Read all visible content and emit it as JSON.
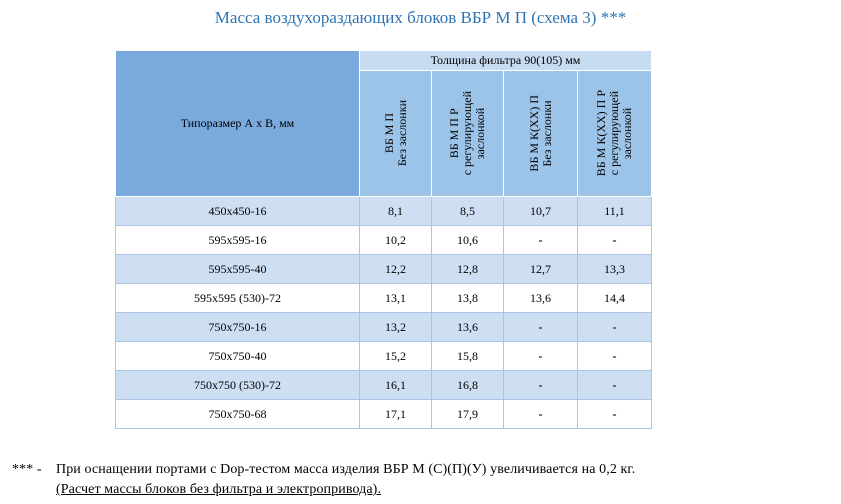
{
  "title": "Масса воздухораздающих  блоков ВБР М П (схема 3) ***",
  "table": {
    "size_header": "Типоразмер А х В, мм",
    "thickness_header": "Толщина фильтра  90(105) мм",
    "columns": [
      "ВБ М П\nБез заслонки",
      "ВБ М П Р\nс регулирующей\nзаслонкой",
      "ВБ М К(ХХ) П\nБез заслонки",
      "ВБ М К(ХХ) П Р\nс регулирующей\nзаслонкой"
    ],
    "rows": [
      {
        "size": "450х450-16",
        "v1": "8,1",
        "v2": "8,5",
        "v3": "10,7",
        "v4": "11,1"
      },
      {
        "size": "595х595-16",
        "v1": "10,2",
        "v2": "10,6",
        "v3": "-",
        "v4": "-"
      },
      {
        "size": "595х595-40",
        "v1": "12,2",
        "v2": "12,8",
        "v3": "12,7",
        "v4": "13,3"
      },
      {
        "size": "595х595 (530)-72",
        "v1": "13,1",
        "v2": "13,8",
        "v3": "13,6",
        "v4": "14,4"
      },
      {
        "size": "750х750-16",
        "v1": "13,2",
        "v2": "13,6",
        "v3": "-",
        "v4": "-"
      },
      {
        "size": "750х750-40",
        "v1": "15,2",
        "v2": "15,8",
        "v3": "-",
        "v4": "-"
      },
      {
        "size": "750х750 (530)-72",
        "v1": "16,1",
        "v2": "16,8",
        "v3": "-",
        "v4": "-"
      },
      {
        "size": "750х750-68",
        "v1": "17,1",
        "v2": "17,9",
        "v3": "-",
        "v4": "-"
      }
    ]
  },
  "footnote": {
    "mark": "*** -",
    "line1": "При оснащении  портами с  Dop-тестом  масса  изделия  ВБР М (С)(П)(У) увеличивается  на  0,2 кг.",
    "line2": "(Расчет массы блоков без фильтра и электропривода)."
  }
}
